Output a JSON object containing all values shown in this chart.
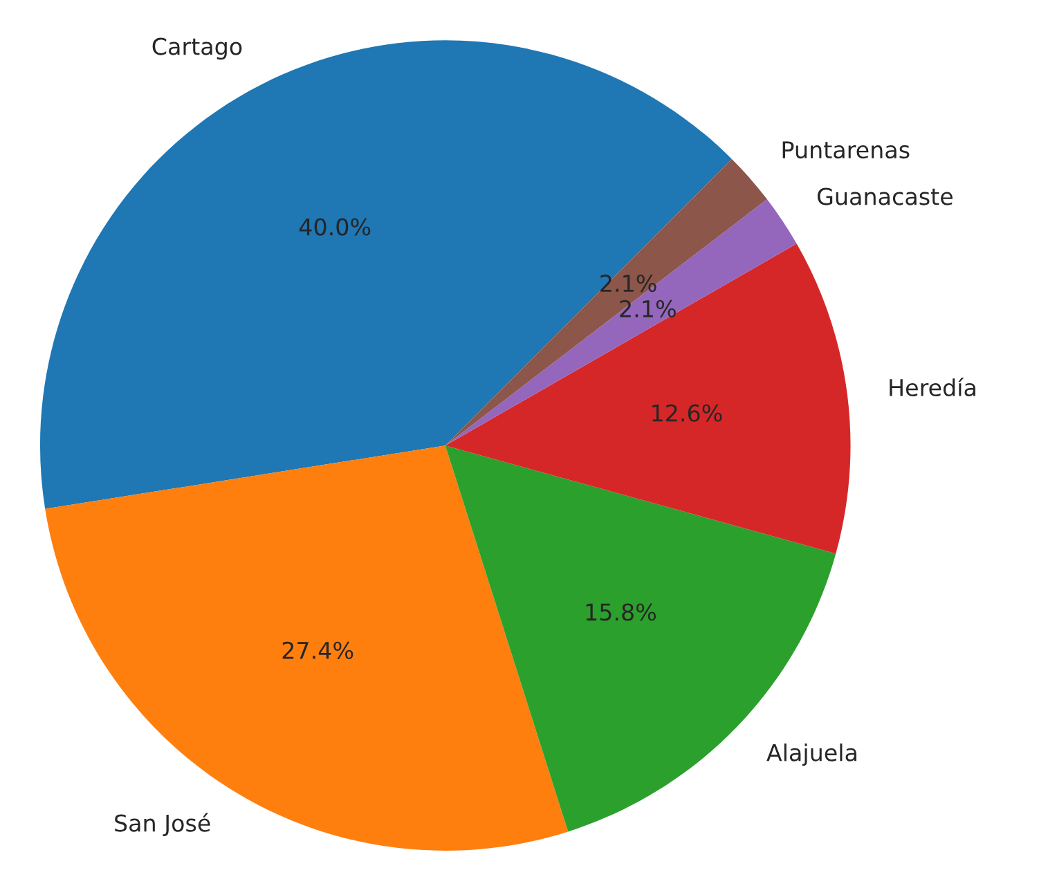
{
  "chart_data": {
    "type": "pie",
    "categories": [
      "Cartago",
      "San José",
      "Alajuela",
      "Heredía",
      "Guanacaste",
      "Puntarenas"
    ],
    "values": [
      40.0,
      27.4,
      15.8,
      12.6,
      2.1,
      2.1
    ],
    "value_labels": [
      "40.0%",
      "27.4%",
      "15.8%",
      "12.6%",
      "2.1%",
      "2.1%"
    ],
    "colors": [
      "#1f77b4",
      "#ff7f0e",
      "#2ca02c",
      "#d62728",
      "#9467bd",
      "#8c564b"
    ]
  }
}
